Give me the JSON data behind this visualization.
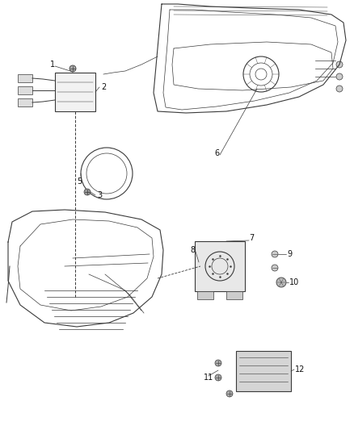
{
  "bg_color": "#ffffff",
  "line_color": "#3a3a3a",
  "label_color": "#111111",
  "fig_width": 4.38,
  "fig_height": 5.33,
  "dpi": 100,
  "label_fs": 7.0
}
